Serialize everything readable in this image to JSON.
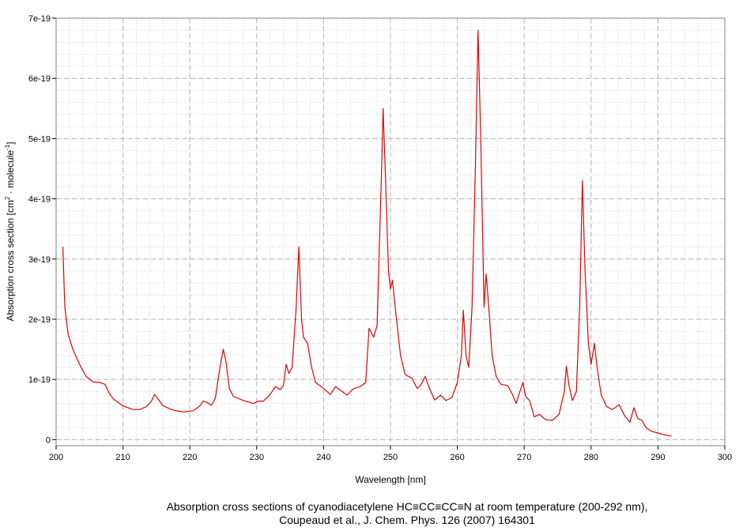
{
  "chart_data": {
    "type": "line",
    "xlabel": "Wavelength [nm]",
    "ylabel": {
      "prefix": "Absorption cross section [cm",
      "sup1": "2",
      "middle": " · molecule",
      "sup2": "-1",
      "suffix": "]"
    },
    "xlim": [
      200,
      300
    ],
    "ylim": [
      -1e-20,
      7e-19
    ],
    "x_ticks": [
      200,
      210,
      220,
      230,
      240,
      250,
      260,
      270,
      280,
      290,
      300
    ],
    "x_tick_labels": [
      "200",
      "210",
      "220",
      "230",
      "240",
      "250",
      "260",
      "270",
      "280",
      "290",
      "300"
    ],
    "y_ticks": [
      0,
      1e-19,
      2e-19,
      3e-19,
      4e-19,
      5e-19,
      6e-19,
      7e-19
    ],
    "y_tick_labels": [
      "0",
      "1e-19",
      "2e-19",
      "3e-19",
      "4e-19",
      "5e-19",
      "6e-19",
      "7e-19"
    ],
    "grid": true,
    "minor_grid": true,
    "series": [
      {
        "color": "#e00000",
        "points": [
          [
            201.0,
            3.2e-19
          ],
          [
            201.3,
            2.2e-19
          ],
          [
            201.8,
            1.75e-19
          ],
          [
            202.5,
            1.5e-19
          ],
          [
            203.5,
            1.25e-19
          ],
          [
            204.5,
            1.05e-19
          ],
          [
            205.5,
            9.6e-20
          ],
          [
            206.5,
            9.5e-20
          ],
          [
            207.3,
            9.2e-20
          ],
          [
            207.8,
            8e-20
          ],
          [
            208.5,
            6.8e-20
          ],
          [
            210.0,
            5.6e-20
          ],
          [
            211.5,
            5e-20
          ],
          [
            212.5,
            5e-20
          ],
          [
            213.5,
            5.5e-20
          ],
          [
            214.3,
            6.5e-20
          ],
          [
            214.7,
            7.5e-20
          ],
          [
            215.2,
            6.8e-20
          ],
          [
            216.0,
            5.6e-20
          ],
          [
            217.5,
            4.9e-20
          ],
          [
            219.0,
            4.6e-20
          ],
          [
            220.5,
            4.8e-20
          ],
          [
            221.5,
            5.6e-20
          ],
          [
            222.0,
            6.4e-20
          ],
          [
            222.5,
            6.2e-20
          ],
          [
            223.2,
            5.7e-20
          ],
          [
            223.8,
            6.8e-20
          ],
          [
            224.5,
            1.2e-19
          ],
          [
            225.0,
            1.5e-19
          ],
          [
            225.4,
            1.3e-19
          ],
          [
            225.9,
            8.5e-20
          ],
          [
            226.5,
            7.2e-20
          ],
          [
            228.0,
            6.5e-20
          ],
          [
            229.5,
            6e-20
          ],
          [
            230.3,
            6.4e-20
          ],
          [
            231.0,
            6.4e-20
          ],
          [
            232.0,
            7.5e-20
          ],
          [
            232.8,
            8.8e-20
          ],
          [
            233.5,
            8.3e-20
          ],
          [
            234.0,
            9e-20
          ],
          [
            234.4,
            1.25e-19
          ],
          [
            234.8,
            1.1e-19
          ],
          [
            235.3,
            1.2e-19
          ],
          [
            235.9,
            2.2e-19
          ],
          [
            236.3,
            3.2e-19
          ],
          [
            236.7,
            2e-19
          ],
          [
            237.0,
            1.7e-19
          ],
          [
            237.6,
            1.6e-19
          ],
          [
            238.2,
            1.2e-19
          ],
          [
            238.8,
            9.5e-20
          ],
          [
            240.0,
            8.5e-20
          ],
          [
            241.0,
            7.5e-20
          ],
          [
            241.8,
            8.8e-20
          ],
          [
            242.5,
            8.2e-20
          ],
          [
            243.5,
            7.4e-20
          ],
          [
            244.5,
            8.5e-20
          ],
          [
            245.5,
            8.8e-20
          ],
          [
            246.3,
            9.5e-20
          ],
          [
            246.8,
            1.85e-19
          ],
          [
            247.5,
            1.7e-19
          ],
          [
            248.0,
            1.9e-19
          ],
          [
            248.7,
            4.6e-19
          ],
          [
            248.9,
            5.5e-19
          ],
          [
            249.3,
            4.2e-19
          ],
          [
            249.7,
            2.8e-19
          ],
          [
            250.0,
            2.5e-19
          ],
          [
            250.3,
            2.65e-19
          ],
          [
            250.8,
            2.1e-19
          ],
          [
            251.5,
            1.4e-19
          ],
          [
            252.2,
            1.08e-19
          ],
          [
            253.2,
            1.02e-19
          ],
          [
            254.0,
            8.5e-20
          ],
          [
            254.5,
            9e-20
          ],
          [
            255.2,
            1.05e-19
          ],
          [
            255.8,
            8.6e-20
          ],
          [
            256.6,
            6.6e-20
          ],
          [
            257.5,
            7.4e-20
          ],
          [
            258.3,
            6.5e-20
          ],
          [
            259.2,
            7e-20
          ],
          [
            260.0,
            9.5e-20
          ],
          [
            260.6,
            1.4e-19
          ],
          [
            260.9,
            2.15e-19
          ],
          [
            261.3,
            1.4e-19
          ],
          [
            261.7,
            1.2e-19
          ],
          [
            262.2,
            2.2e-19
          ],
          [
            262.7,
            4.5e-19
          ],
          [
            263.1,
            6.8e-19
          ],
          [
            263.5,
            5e-19
          ],
          [
            264.0,
            2.2e-19
          ],
          [
            264.3,
            2.75e-19
          ],
          [
            264.7,
            2.2e-19
          ],
          [
            265.2,
            1.4e-19
          ],
          [
            265.8,
            1.05e-19
          ],
          [
            266.5,
            9.2e-20
          ],
          [
            267.5,
            9e-20
          ],
          [
            268.2,
            7.6e-20
          ],
          [
            268.8,
            6e-20
          ],
          [
            269.3,
            7.8e-20
          ],
          [
            269.8,
            9.5e-20
          ],
          [
            270.2,
            7.2e-20
          ],
          [
            270.8,
            6.5e-20
          ],
          [
            271.5,
            3.8e-20
          ],
          [
            272.3,
            4.2e-20
          ],
          [
            273.2,
            3.3e-20
          ],
          [
            274.2,
            3.2e-20
          ],
          [
            275.2,
            4.2e-20
          ],
          [
            276.0,
            8e-20
          ],
          [
            276.3,
            1.22e-19
          ],
          [
            276.7,
            9e-20
          ],
          [
            277.2,
            6.5e-20
          ],
          [
            277.8,
            8e-20
          ],
          [
            278.3,
            2.2e-19
          ],
          [
            278.7,
            4.3e-19
          ],
          [
            279.1,
            2.8e-19
          ],
          [
            279.6,
            1.6e-19
          ],
          [
            280.0,
            1.25e-19
          ],
          [
            280.5,
            1.6e-19
          ],
          [
            280.9,
            1.2e-19
          ],
          [
            281.5,
            7.5e-20
          ],
          [
            282.3,
            5.5e-20
          ],
          [
            283.2,
            5e-20
          ],
          [
            284.2,
            5.8e-20
          ],
          [
            285.0,
            4e-20
          ],
          [
            285.8,
            2.9e-20
          ],
          [
            286.4,
            5.3e-20
          ],
          [
            287.0,
            3.5e-20
          ],
          [
            287.6,
            3.2e-20
          ],
          [
            288.2,
            2e-20
          ],
          [
            289.0,
            1.4e-20
          ],
          [
            290.0,
            1.1e-20
          ],
          [
            291.0,
            8e-21
          ],
          [
            292.0,
            6e-21
          ]
        ]
      }
    ]
  },
  "caption": {
    "line1": "Absorption cross sections of cyanodiacetylene HC≡CC≡CC≡N at room temperature (200-292 nm),",
    "line2": "Coupeaud et al., J. Chem. Phys. 126 (2007) 164301"
  }
}
